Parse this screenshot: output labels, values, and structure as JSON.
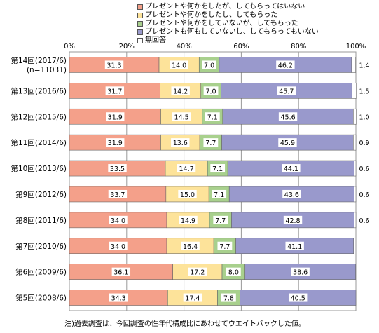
{
  "chart_data": {
    "type": "bar",
    "orientation": "horizontal",
    "stacked": true,
    "percent": true,
    "xlim": [
      0,
      100
    ],
    "x_ticks": [
      "0%",
      "20%",
      "40%",
      "60%",
      "80%",
      "100%"
    ],
    "grid": true,
    "legend_position": "top",
    "categories": [
      [
        "第14回(2017/6)",
        "(n=11031)"
      ],
      [
        "第13回(2016/6)"
      ],
      [
        "第12回(2015/6)"
      ],
      [
        "第11回(2014/6)"
      ],
      [
        "第10回(2013/6)"
      ],
      [
        "第9回(2012/6)"
      ],
      [
        "第8回(2011/6)"
      ],
      [
        "第7回(2010/6)"
      ],
      [
        "第6回(2009/6)"
      ],
      [
        "第5回(2008/6)"
      ]
    ],
    "series": [
      {
        "name": "プレゼントや何かをしたが、してもらってはいない",
        "color": "#f4a08a",
        "values": [
          31.3,
          31.7,
          31.9,
          31.9,
          33.5,
          33.7,
          34.0,
          34.0,
          36.1,
          34.3
        ]
      },
      {
        "name": "プレゼントや何かをしたし、してもらった",
        "color": "#fde39a",
        "values": [
          14.0,
          14.2,
          14.5,
          13.6,
          14.7,
          15.0,
          14.9,
          16.4,
          17.2,
          17.4
        ]
      },
      {
        "name": "プレゼントや何かをしていないが、してもらった",
        "color": "#a8d08d",
        "values": [
          7.0,
          7.0,
          7.1,
          7.7,
          7.1,
          7.1,
          7.7,
          7.7,
          8.0,
          7.8
        ]
      },
      {
        "name": "プレゼントも何もしていないし、してもらってもいない",
        "color": "#9999cc",
        "values": [
          46.2,
          45.7,
          45.6,
          45.9,
          44.1,
          43.6,
          42.8,
          41.1,
          38.6,
          40.5
        ]
      },
      {
        "name": "無回答",
        "color": "#ffffff",
        "values": [
          1.4,
          1.5,
          1.0,
          0.9,
          0.6,
          0.6,
          0.6,
          null,
          null,
          null
        ]
      }
    ],
    "value_labels": [
      [
        "31.3",
        "14.0",
        "7.0",
        "46.2",
        "1.4"
      ],
      [
        "31.7",
        "14.2",
        "7.0",
        "45.7",
        "1.5"
      ],
      [
        "31.9",
        "14.5",
        "7.1",
        "45.6",
        "1.0"
      ],
      [
        "31.9",
        "13.6",
        "7.7",
        "45.9",
        "0.9"
      ],
      [
        "33.5",
        "14.7",
        "7.1",
        "44.1",
        "0.6"
      ],
      [
        "33.7",
        "15.0",
        "7.1",
        "43.6",
        "0.6"
      ],
      [
        "34.0",
        "14.9",
        "7.7",
        "42.8",
        "0.6"
      ],
      [
        "34.0",
        "16.4",
        "7.7",
        "41.1",
        ""
      ],
      [
        "36.1",
        "17.2",
        "8.0",
        "38.6",
        ""
      ],
      [
        "34.3",
        "17.4",
        "7.8",
        "40.5",
        ""
      ]
    ]
  },
  "footnote": "注)過去調査は、今回調査の性年代構成比にあわせてウエイトバックした値。"
}
